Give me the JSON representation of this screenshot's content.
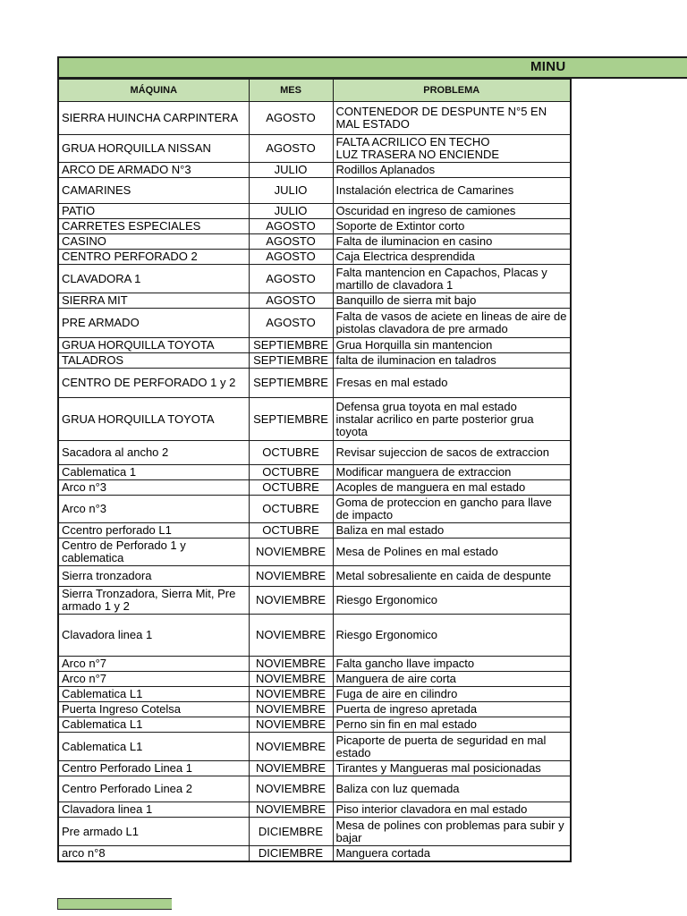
{
  "title": {
    "visible_text": "MINU"
  },
  "table": {
    "headers": [
      "MÁQUINA",
      "MES",
      "PROBLEMA"
    ],
    "rows": [
      {
        "maquina": "SIERRA HUINCHA CARPINTERA",
        "mes": "AGOSTO",
        "problema": "CONTENEDOR DE DESPUNTE N°5 EN MAL ESTADO"
      },
      {
        "maquina": "GRUA HORQUILLA NISSAN",
        "mes": "AGOSTO",
        "problema": "FALTA ACRILICO EN TECHO\nLUZ TRASERA NO ENCIENDE"
      },
      {
        "maquina": "ARCO DE ARMADO N°3",
        "mes": "JULIO",
        "problema": "Rodillos Aplanados"
      },
      {
        "maquina": "CAMARINES",
        "mes": "JULIO",
        "problema": "Instalación electrica de Camarines"
      },
      {
        "maquina": "PATIO",
        "mes": "JULIO",
        "problema": "Oscuridad en ingreso de camiones"
      },
      {
        "maquina": "CARRETES ESPECIALES",
        "mes": "AGOSTO",
        "problema": "Soporte de Extintor corto"
      },
      {
        "maquina": "CASINO",
        "mes": "AGOSTO",
        "problema": "Falta de iluminacion en casino"
      },
      {
        "maquina": "CENTRO PERFORADO 2",
        "mes": "AGOSTO",
        "problema": "Caja Electrica desprendida"
      },
      {
        "maquina": "CLAVADORA 1",
        "mes": "AGOSTO",
        "problema": "Falta mantencion en Capachos, Placas y martillo de clavadora 1"
      },
      {
        "maquina": "SIERRA MIT",
        "mes": "AGOSTO",
        "problema": "Banquillo de sierra mit bajo"
      },
      {
        "maquina": "PRE ARMADO",
        "mes": "AGOSTO",
        "problema": "Falta de vasos de aciete en lineas de aire de pistolas clavadora de pre armado"
      },
      {
        "maquina": "GRUA HORQUILLA TOYOTA",
        "mes": "SEPTIEMBRE",
        "problema": "Grua Horquilla sin mantencion"
      },
      {
        "maquina": "TALADROS",
        "mes": "SEPTIEMBRE",
        "problema": "falta de iluminacion en taladros"
      },
      {
        "maquina": "CENTRO DE PERFORADO  1 y 2",
        "mes": "SEPTIEMBRE",
        "problema": "Fresas en mal estado"
      },
      {
        "maquina": "GRUA HORQUILLA TOYOTA",
        "mes": "SEPTIEMBRE",
        "problema": "Defensa grua toyota en mal estado\ninstalar acrilico en parte posterior grua toyota"
      },
      {
        "maquina": "Sacadora al ancho 2",
        "mes": "OCTUBRE",
        "problema": "Revisar sujeccion de sacos de extraccion"
      },
      {
        "maquina": "Cablematica 1",
        "mes": "OCTUBRE",
        "problema": "Modificar manguera de extraccion"
      },
      {
        "maquina": "Arco n°3",
        "mes": "OCTUBRE",
        "problema": "Acoples de manguera en mal estado"
      },
      {
        "maquina": "Arco n°3",
        "mes": "OCTUBRE",
        "problema": "Goma de proteccion en gancho para llave de impacto"
      },
      {
        "maquina": "Ccentro perforado L1",
        "mes": "OCTUBRE",
        "problema": "Baliza en mal estado"
      },
      {
        "maquina": "Centro de Perforado 1 y cablematica",
        "mes": "NOVIEMBRE",
        "problema": "Mesa de Polines en mal estado"
      },
      {
        "maquina": "Sierra tronzadora",
        "mes": "NOVIEMBRE",
        "problema": "Metal sobresaliente en caida de despunte"
      },
      {
        "maquina": "Sierra Tronzadora, Sierra Mit, Pre armado 1 y 2",
        "mes": "NOVIEMBRE",
        "problema": "Riesgo Ergonomico"
      },
      {
        "maquina": "Clavadora linea 1",
        "mes": "NOVIEMBRE",
        "problema": "Riesgo Ergonomico"
      },
      {
        "maquina": "Arco n°7",
        "mes": "NOVIEMBRE",
        "problema": "Falta gancho llave impacto"
      },
      {
        "maquina": "Arco n°7",
        "mes": "NOVIEMBRE",
        "problema": "Manguera de aire corta"
      },
      {
        "maquina": "Cablematica L1",
        "mes": "NOVIEMBRE",
        "problema": "Fuga de aire en cilindro"
      },
      {
        "maquina": "Puerta Ingreso Cotelsa",
        "mes": "NOVIEMBRE",
        "problema": "Puerta de ingreso apretada"
      },
      {
        "maquina": "Cablematica L1",
        "mes": "NOVIEMBRE",
        "problema": "Perno sin fin en mal estado"
      },
      {
        "maquina": "Cablematica L1",
        "mes": "NOVIEMBRE",
        "problema": "Picaporte de puerta de seguridad en mal estado"
      },
      {
        "maquina": "Centro Perforado Linea 1",
        "mes": "NOVIEMBRE",
        "problema": "Tirantes y Mangueras mal posicionadas"
      },
      {
        "maquina": "Centro Perforado Linea 2",
        "mes": "NOVIEMBRE",
        "problema": "Baliza con luz quemada"
      },
      {
        "maquina": "Clavadora linea 1",
        "mes": "NOVIEMBRE",
        "problema": "Piso interior clavadora en mal estado"
      },
      {
        "maquina": "Pre armado L1",
        "mes": "DICIEMBRE",
        "problema": "Mesa de polines con problemas para subir y bajar"
      },
      {
        "maquina": "arco n°8",
        "mes": "DICIEMBRE",
        "problema": "Manguera cortada"
      }
    ]
  },
  "colors": {
    "title_bar_green": "#a9d08e",
    "header_green": "#c6e0b4",
    "border": "#1c1c1c",
    "text": "#000000",
    "page_background": "#ffffff"
  }
}
